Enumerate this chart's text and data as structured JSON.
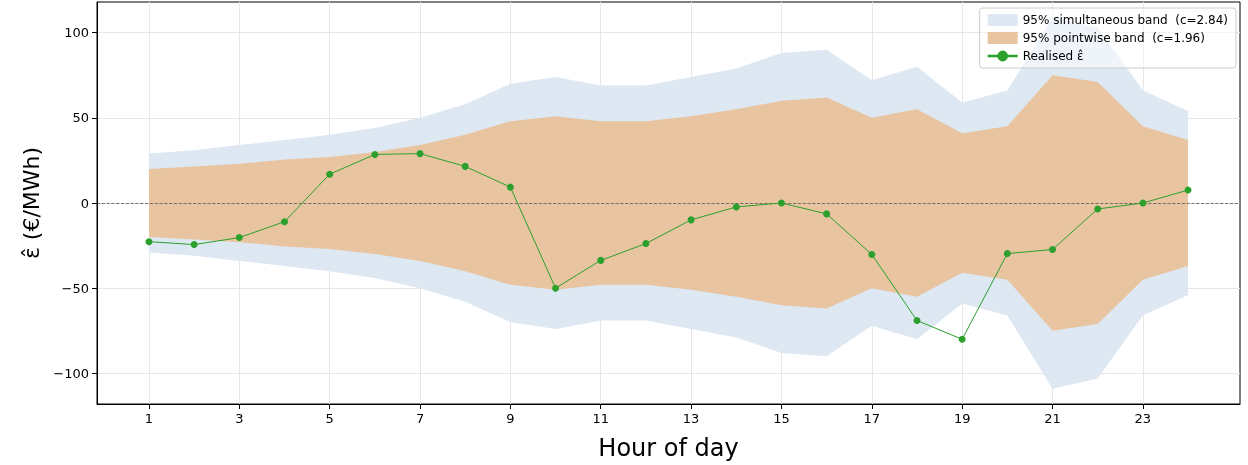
{
  "chart_data": {
    "type": "line",
    "xlabel": "Hour of day",
    "ylabel": "ε̂ (€/MWh)",
    "x": [
      1,
      2,
      3,
      4,
      5,
      6,
      7,
      8,
      9,
      10,
      11,
      12,
      13,
      14,
      15,
      16,
      17,
      18,
      19,
      20,
      21,
      22,
      23,
      24
    ],
    "xlim": [
      -0.15,
      25.15
    ],
    "xticks": [
      1,
      3,
      5,
      7,
      9,
      11,
      13,
      15,
      17,
      19,
      21,
      23
    ],
    "ylim": [
      -118,
      118
    ],
    "yticks": [
      -100,
      -50,
      0,
      50,
      100
    ],
    "series": [
      {
        "name": "95% simultaneous band  (c=2.84)",
        "type": "area",
        "marker": "none",
        "color": "#dde8f3",
        "values": [
          29,
          31,
          34,
          37,
          40,
          44,
          50,
          58,
          70,
          74,
          69,
          69,
          74,
          79,
          88,
          90,
          72,
          80,
          59,
          66,
          109,
          103,
          66,
          54
        ]
      },
      {
        "type": "area",
        "marker": "none",
        "color": "#dde8f3",
        "values": [
          -29,
          -31,
          -34,
          -37,
          -40,
          -44,
          -50,
          -58,
          -70,
          -74,
          -69,
          -69,
          -74,
          -79,
          -88,
          -90,
          -72,
          -80,
          -59,
          -66,
          -109,
          -103,
          -66,
          -54
        ]
      },
      {
        "name": "95% pointwise band  (c=1.96)",
        "type": "area",
        "marker": "none",
        "color": "#e8c4a1",
        "values": [
          20,
          21.5,
          23,
          25.5,
          27,
          30,
          34,
          40,
          48,
          51,
          48,
          48,
          51,
          55,
          60,
          62,
          50,
          55,
          41,
          45,
          75,
          71,
          45,
          37
        ]
      },
      {
        "type": "area",
        "marker": "none",
        "color": "#e8c4a1",
        "values": [
          -20,
          -21.5,
          -23,
          -25.5,
          -27,
          -30,
          -34,
          -40,
          -48,
          -51,
          -48,
          -48,
          -51,
          -55,
          -60,
          -62,
          -50,
          -55,
          -41,
          -45,
          -75,
          -71,
          -45,
          -37
        ]
      },
      {
        "name": "Realised ε̂",
        "type": "line",
        "color": "#2ca02c",
        "values": [
          -22.7,
          -24.4,
          -20.3,
          -11,
          16.9,
          28.5,
          29,
          21.5,
          9.3,
          -50,
          -33.7,
          -23.8,
          -9.9,
          -2.3,
          0,
          -6.4,
          -30.2,
          -69,
          -80,
          -29.7,
          -27.3,
          -3.5,
          0,
          7.6
        ]
      }
    ],
    "ref_lines": [
      {
        "axis": "y",
        "value": 0,
        "color": "#555555",
        "line_style": "dashed"
      }
    ],
    "grid": true,
    "legend": "top right",
    "marker": "circle",
    "line_style": "solid"
  }
}
